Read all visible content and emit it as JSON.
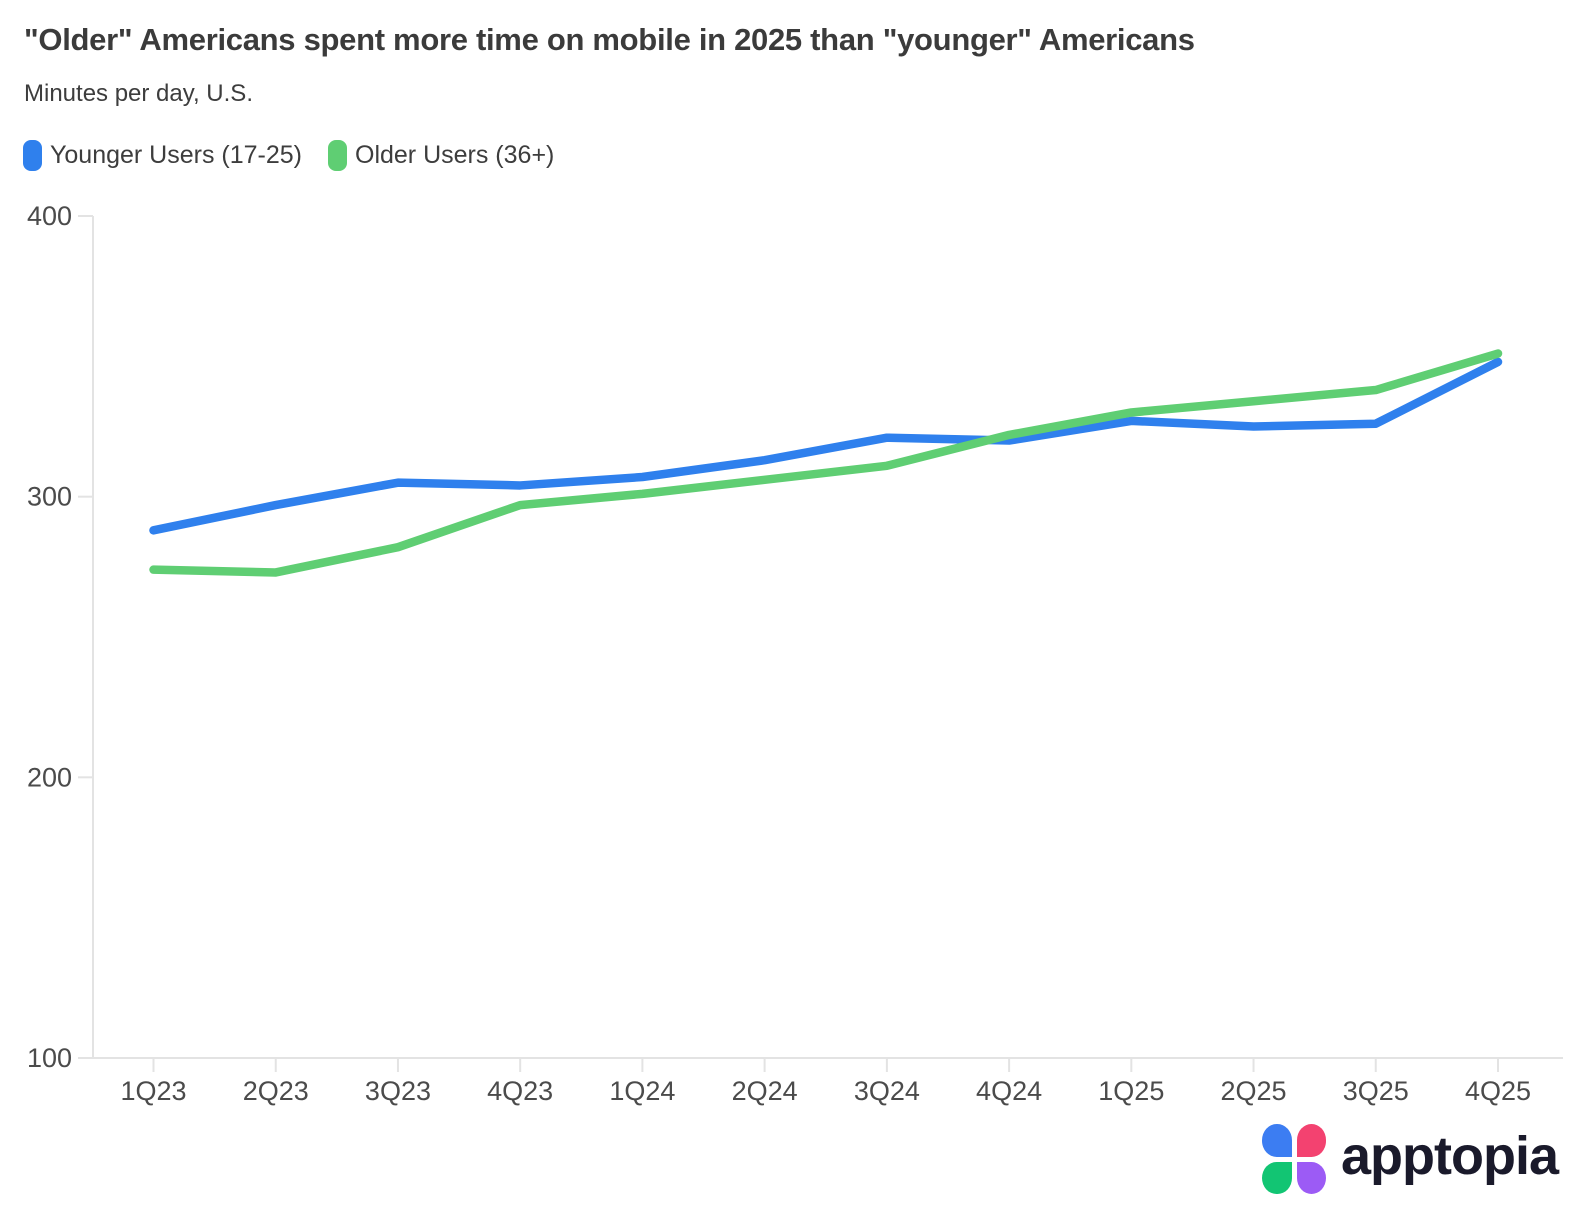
{
  "header": {
    "title": "\"Older\" Americans spent more time on mobile in 2025 than \"younger\" Americans",
    "subtitle": "Minutes per day, U.S."
  },
  "legend": [
    {
      "label": "Younger Users (17-25)",
      "color": "#2F80ED"
    },
    {
      "label": "Older Users (36+)",
      "color": "#5FCE73"
    }
  ],
  "chart_data": {
    "type": "line",
    "title": "\"Older\" Americans spent more time on mobile in 2025 than \"younger\" Americans",
    "subtitle": "Minutes per day, U.S.",
    "xlabel": "",
    "ylabel": "Minutes per day",
    "categories": [
      "1Q23",
      "2Q23",
      "3Q23",
      "4Q23",
      "1Q24",
      "2Q24",
      "3Q24",
      "4Q24",
      "1Q25",
      "2Q25",
      "3Q25",
      "4Q25"
    ],
    "series": [
      {
        "name": "Younger Users (17-25)",
        "color": "#2F80ED",
        "values": [
          288,
          297,
          305,
          304,
          307,
          313,
          321,
          320,
          327,
          325,
          326,
          348
        ]
      },
      {
        "name": "Older Users (36+)",
        "color": "#5FCE73",
        "values": [
          274,
          273,
          282,
          297,
          301,
          306,
          311,
          322,
          330,
          334,
          338,
          351
        ]
      }
    ],
    "ylim": [
      100,
      400
    ],
    "y_ticks": [
      400,
      300,
      200,
      100
    ],
    "grid": false,
    "legend_position": "top-left",
    "colors": {
      "axis_line": "#E3E3E3",
      "tick_text": "#4B4B4B"
    }
  },
  "branding": {
    "logo_text": "apptopia",
    "logo_icon": "clover-icon",
    "petal_colors": {
      "top_left": "#3C7DF2",
      "top_right": "#F34270",
      "bottom_left": "#12C573",
      "bottom_right": "#9C5BF5"
    },
    "wordmark_color": "#1A1A2B"
  }
}
